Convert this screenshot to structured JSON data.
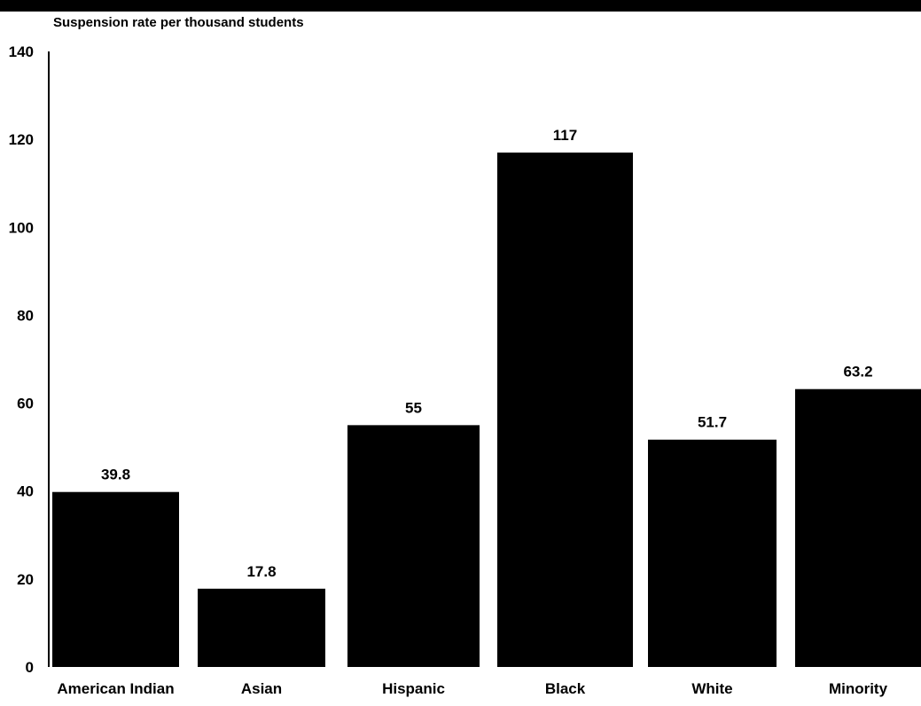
{
  "chart_data": {
    "type": "bar",
    "title": "",
    "ylabel": "Suspension rate per thousand students",
    "xlabel": "",
    "categories": [
      "American Indian",
      "Asian",
      "Hispanic",
      "Black",
      "White",
      "Minority"
    ],
    "values": [
      39.8,
      17.8,
      55,
      117,
      51.7,
      63.2
    ],
    "value_labels": [
      "39.8",
      "17.8",
      "55",
      "117",
      "51.7",
      "63.2"
    ],
    "yticks": [
      0,
      20,
      40,
      60,
      80,
      100,
      120,
      140
    ],
    "ylim": [
      0,
      140
    ],
    "grid": false,
    "legend": "none",
    "bar_color": "#000000"
  }
}
